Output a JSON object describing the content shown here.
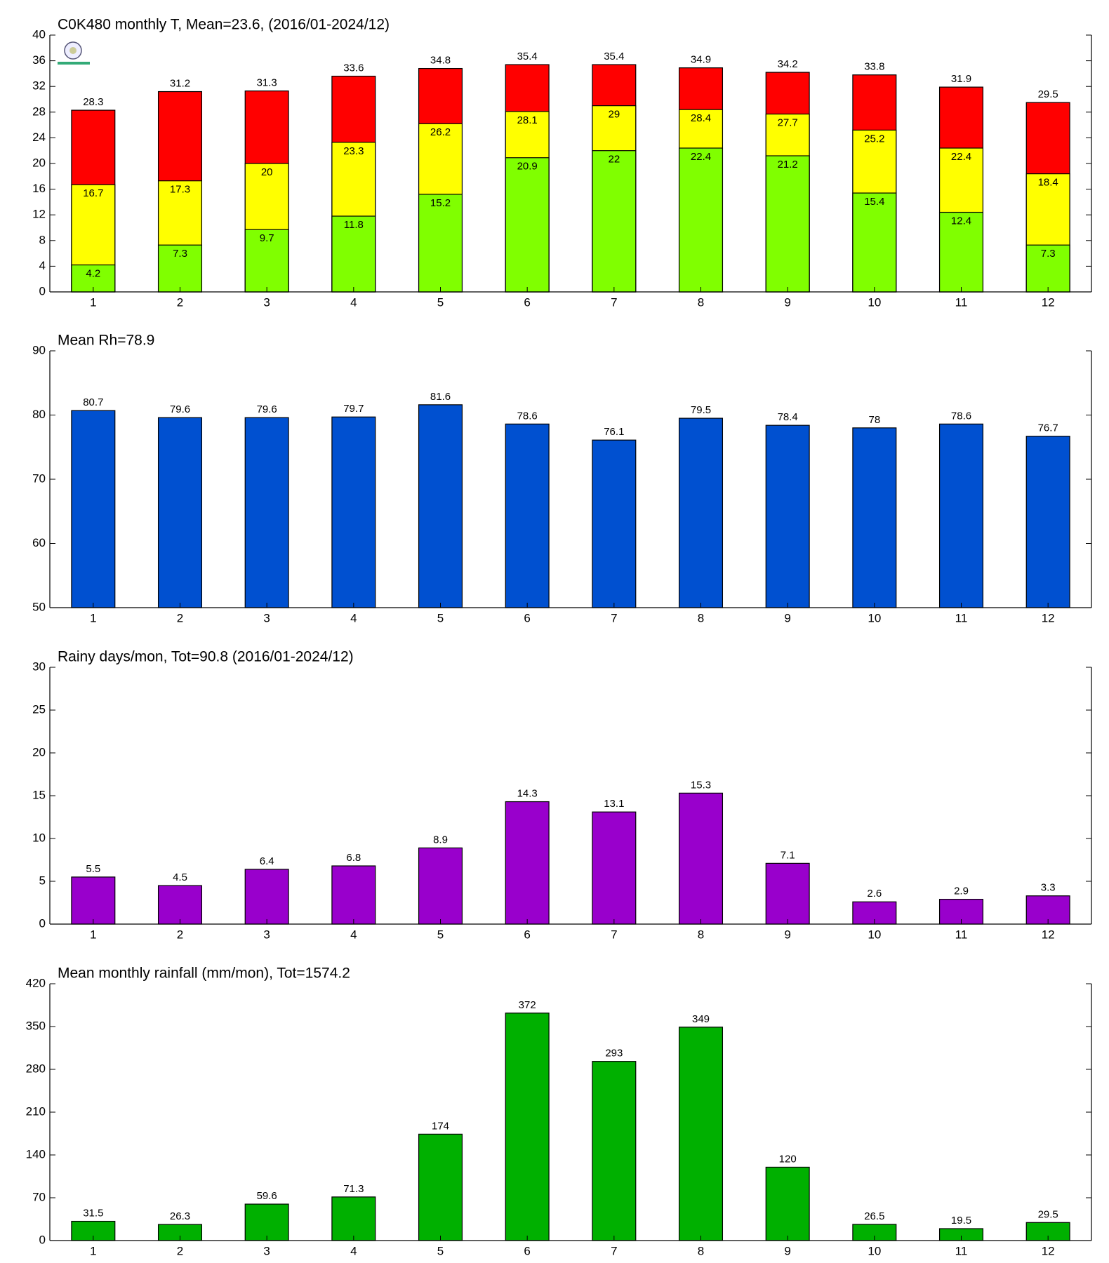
{
  "chart_data": [
    {
      "type": "bar",
      "title": "C0K480 monthly T, Mean=23.6, (2016/01-2024/12)",
      "categories": [
        "1",
        "2",
        "3",
        "4",
        "5",
        "6",
        "7",
        "8",
        "9",
        "10",
        "11",
        "12"
      ],
      "series": [
        {
          "color": "#ff0000",
          "values": [
            28.3,
            31.2,
            31.3,
            33.6,
            34.8,
            35.4,
            35.4,
            34.9,
            34.2,
            33.8,
            31.9,
            29.5
          ]
        },
        {
          "color": "#ffff00",
          "values": [
            16.7,
            17.3,
            20,
            23.3,
            26.2,
            28.1,
            29,
            28.4,
            27.7,
            25.2,
            22.4,
            18.4
          ]
        },
        {
          "color": "#80ff00",
          "values": [
            4.2,
            7.3,
            9.7,
            11.8,
            15.2,
            20.9,
            22,
            22.4,
            21.2,
            15.4,
            12.4,
            7.3
          ]
        }
      ],
      "ylim": [
        0,
        40
      ],
      "yticks": [
        0,
        4,
        8,
        12,
        16,
        20,
        24,
        28,
        32,
        36,
        40
      ]
    },
    {
      "type": "bar",
      "title": "Mean Rh=78.9",
      "categories": [
        "1",
        "2",
        "3",
        "4",
        "5",
        "6",
        "7",
        "8",
        "9",
        "10",
        "11",
        "12"
      ],
      "series": [
        {
          "color": "#0050d0",
          "values": [
            80.7,
            79.6,
            79.6,
            79.7,
            81.6,
            78.6,
            76.1,
            79.5,
            78.4,
            78,
            78.6,
            76.7
          ]
        }
      ],
      "ylim": [
        50,
        90
      ],
      "yticks": [
        50,
        60,
        70,
        80,
        90
      ]
    },
    {
      "type": "bar",
      "title": "Rainy days/mon, Tot=90.8 (2016/01-2024/12)",
      "categories": [
        "1",
        "2",
        "3",
        "4",
        "5",
        "6",
        "7",
        "8",
        "9",
        "10",
        "11",
        "12"
      ],
      "series": [
        {
          "color": "#9900cc",
          "values": [
            5.5,
            4.5,
            6.4,
            6.8,
            8.9,
            14.3,
            13.1,
            15.3,
            7.1,
            2.6,
            2.9,
            3.3
          ]
        }
      ],
      "ylim": [
        0,
        30
      ],
      "yticks": [
        0,
        5,
        10,
        15,
        20,
        25,
        30
      ]
    },
    {
      "type": "bar",
      "title": "Mean monthly rainfall (mm/mon), Tot=1574.2",
      "categories": [
        "1",
        "2",
        "3",
        "4",
        "5",
        "6",
        "7",
        "8",
        "9",
        "10",
        "11",
        "12"
      ],
      "series": [
        {
          "color": "#00b000",
          "values": [
            31.5,
            26.3,
            59.6,
            71.3,
            174,
            372,
            293,
            349,
            120,
            26.5,
            19.5,
            29.5
          ]
        }
      ],
      "ylim": [
        0,
        420
      ],
      "yticks": [
        0,
        70,
        140,
        210,
        280,
        350,
        420
      ]
    }
  ]
}
